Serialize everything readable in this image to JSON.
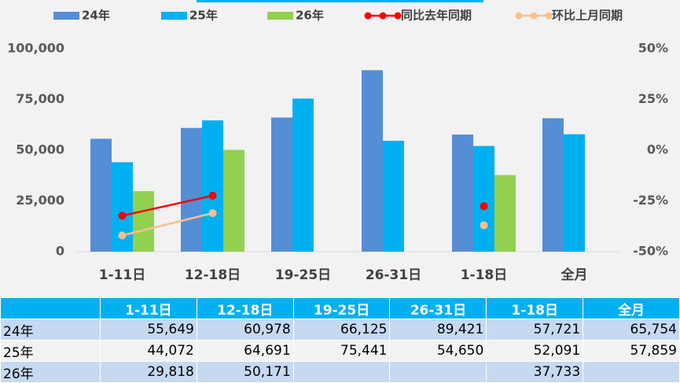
{
  "chart_data": {
    "type": "bar",
    "categories": [
      "1-11日",
      "12-18日",
      "19-25日",
      "26-31日",
      "1-18日",
      "全月"
    ],
    "series": [
      {
        "name": "24年",
        "color": "#558ed5",
        "values": [
          55649,
          60978,
          66125,
          89421,
          57721,
          65754
        ]
      },
      {
        "name": "25年",
        "color": "#00b0f0",
        "values": [
          44072,
          64691,
          75441,
          54650,
          52091,
          57859
        ]
      },
      {
        "name": "26年",
        "color": "#92d050",
        "values": [
          29818,
          50171,
          null,
          null,
          37733,
          null
        ]
      },
      {
        "name": "同比去年同期",
        "color": "#ff0000",
        "type": "line",
        "axis": "y2",
        "values": [
          -32.3,
          -22.4,
          null,
          null,
          -27.6,
          null
        ]
      },
      {
        "name": "环比上月同期",
        "color": "#fac090",
        "type": "line",
        "axis": "y2",
        "values": [
          -42,
          -31,
          null,
          null,
          -37,
          null
        ]
      }
    ],
    "ylim": [
      0,
      100000
    ],
    "yticks": [
      {
        "value": 0,
        "label": "0"
      },
      {
        "value": 25000,
        "label": "25,000"
      },
      {
        "value": 50000,
        "label": "50,000"
      },
      {
        "value": 75000,
        "label": "75,000"
      },
      {
        "value": 100000,
        "label": "100,000"
      }
    ],
    "y2lim": [
      -50,
      50
    ],
    "y2ticks": [
      {
        "value": -50,
        "label": "-50%"
      },
      {
        "value": -25,
        "label": "-25%"
      },
      {
        "value": 0,
        "label": "0%"
      },
      {
        "value": 25,
        "label": "25%"
      },
      {
        "value": 50,
        "label": "50%"
      }
    ],
    "grid": false,
    "legend": "top"
  },
  "table": {
    "header": [
      null,
      "1-11日",
      "12-18日",
      "19-25日",
      "26-31日",
      "1-18日",
      "全月"
    ],
    "rows": [
      [
        "24年",
        "55,649",
        "60,978",
        "66,125",
        "89,421",
        "57,721",
        "65,754"
      ],
      [
        "25年",
        "44,072",
        "64,691",
        "75,441",
        "54,650",
        "52,091",
        "57,859"
      ],
      [
        "26年",
        "29,818",
        "50,171",
        null,
        null,
        "37,733",
        null
      ]
    ]
  }
}
